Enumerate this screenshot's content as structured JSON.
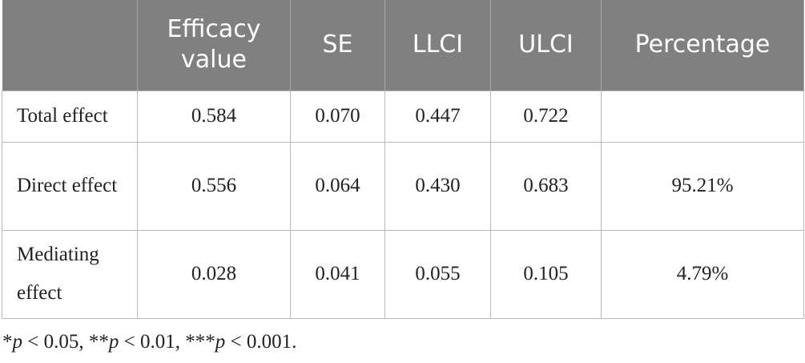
{
  "table": {
    "header": [
      "Efficacy value",
      "SE",
      "LLCI",
      "ULCI",
      "Percentage"
    ],
    "rows": [
      [
        "Total effect",
        "0.584",
        "0.070",
        "0.447",
        "0.722"
      ],
      [
        "Direct effect",
        "0.556",
        "0.064",
        "0.430",
        "0.683",
        "95.21%"
      ],
      [
        "Mediating effect",
        "0.028",
        "0.041",
        "0.055",
        "0.105",
        "4.79%"
      ]
    ],
    "footnote": [
      "*",
      "p",
      " < 0.05, **",
      "p",
      " < 0.01, ***",
      "p",
      " < 0.001."
    ]
  }
}
